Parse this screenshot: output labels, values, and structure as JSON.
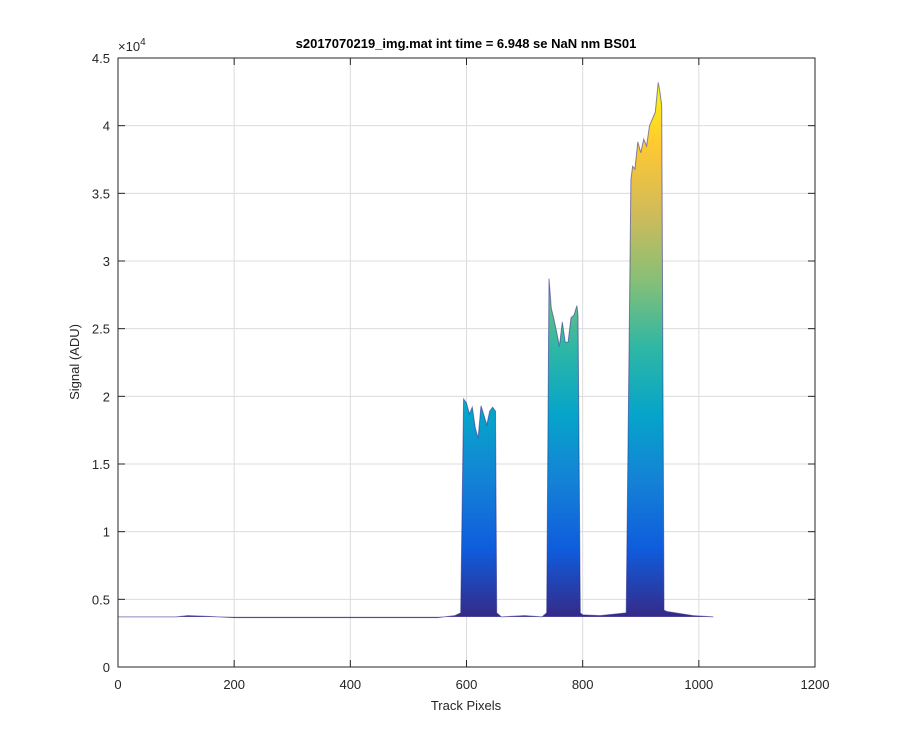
{
  "chart_data": {
    "type": "area",
    "title": "s2017070219_img.mat int time = 6.948 se  NaN nm BS01",
    "xlabel": "Track Pixels",
    "ylabel": "Signal (ADU)",
    "xlim": [
      0,
      1200
    ],
    "ylim": [
      0,
      45000
    ],
    "x_ticks": [
      0,
      200,
      400,
      600,
      800,
      1000,
      1200
    ],
    "x_tick_labels": [
      "0",
      "200",
      "400",
      "600",
      "800",
      "1000",
      "1200"
    ],
    "y_ticks": [
      0,
      5000,
      10000,
      15000,
      20000,
      25000,
      30000,
      35000,
      40000,
      45000
    ],
    "y_tick_labels": [
      "0",
      "0.5",
      "1",
      "1.5",
      "2",
      "2.5",
      "3",
      "3.5",
      "4",
      "4.5"
    ],
    "y_exponent_label": "×10^4",
    "grid": true,
    "baseline": 3700,
    "colormap": [
      "#352a87",
      "#0f5cdd",
      "#1481d6",
      "#06a4ca",
      "#2eb7a4",
      "#87bf77",
      "#d1bb59",
      "#fec832",
      "#f9fb0e"
    ],
    "series": [
      {
        "x": [
          0,
          100,
          120,
          150,
          200,
          400,
          550,
          580,
          590,
          595,
          600,
          605,
          610,
          615,
          620,
          625,
          630,
          635,
          640,
          645,
          650,
          652,
          660,
          700,
          730,
          738,
          742,
          746,
          750,
          755,
          760,
          765,
          770,
          775,
          780,
          785,
          790,
          792,
          796,
          800,
          830,
          875,
          883,
          886,
          890,
          895,
          900,
          905,
          910,
          915,
          920,
          925,
          930,
          933,
          936,
          940,
          945,
          990,
          1025
        ],
        "y": [
          3700,
          3700,
          3800,
          3750,
          3650,
          3650,
          3650,
          3800,
          4000,
          19800,
          19500,
          18700,
          19200,
          17700,
          16900,
          19300,
          18600,
          17900,
          18900,
          19200,
          18900,
          4000,
          3700,
          3800,
          3700,
          4000,
          28700,
          26500,
          25800,
          24800,
          23700,
          25500,
          24000,
          24000,
          25800,
          26000,
          26700,
          26000,
          4000,
          3850,
          3800,
          4000,
          36000,
          37000,
          36800,
          38800,
          38000,
          39000,
          38500,
          40000,
          40500,
          41000,
          43200,
          42500,
          41500,
          4200,
          4100,
          3800,
          3700
        ]
      }
    ]
  }
}
